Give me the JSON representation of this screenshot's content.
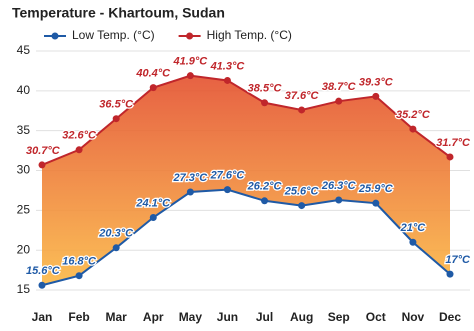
{
  "chart_data": {
    "type": "line",
    "title": "Temperature - Khartoum, Sudan",
    "categories": [
      "Jan",
      "Feb",
      "Mar",
      "Apr",
      "May",
      "Jun",
      "Jul",
      "Aug",
      "Sep",
      "Oct",
      "Nov",
      "Dec"
    ],
    "series": [
      {
        "name": "Low Temp. (°C)",
        "color": "#1f5aa6",
        "values": [
          15.6,
          16.8,
          20.3,
          24.1,
          27.3,
          27.6,
          26.2,
          25.6,
          26.3,
          25.9,
          21,
          17
        ],
        "value_labels": [
          "15.6°C",
          "16.8°C",
          "20.3°C",
          "24.1°C",
          "27.3°C",
          "27.6°C",
          "26.2°C",
          "25.6°C",
          "26.3°C",
          "25.9°C",
          "21°C",
          "17°C"
        ]
      },
      {
        "name": "High Temp. (°C)",
        "color": "#c0262b",
        "values": [
          30.7,
          32.6,
          36.5,
          40.4,
          41.9,
          41.3,
          38.5,
          37.6,
          38.7,
          39.3,
          35.2,
          31.7
        ],
        "value_labels": [
          "30.7°C",
          "32.6°C",
          "36.5°C",
          "40.4°C",
          "41.9°C",
          "41.3°C",
          "38.5°C",
          "37.6°C",
          "38.7°C",
          "39.3°C",
          "35.2°C",
          "31.7°C"
        ]
      }
    ],
    "ylim": [
      13.5,
      46
    ],
    "yticks": [
      15,
      20,
      25,
      30,
      35,
      40,
      45
    ],
    "grid": true,
    "fill_between": true
  }
}
